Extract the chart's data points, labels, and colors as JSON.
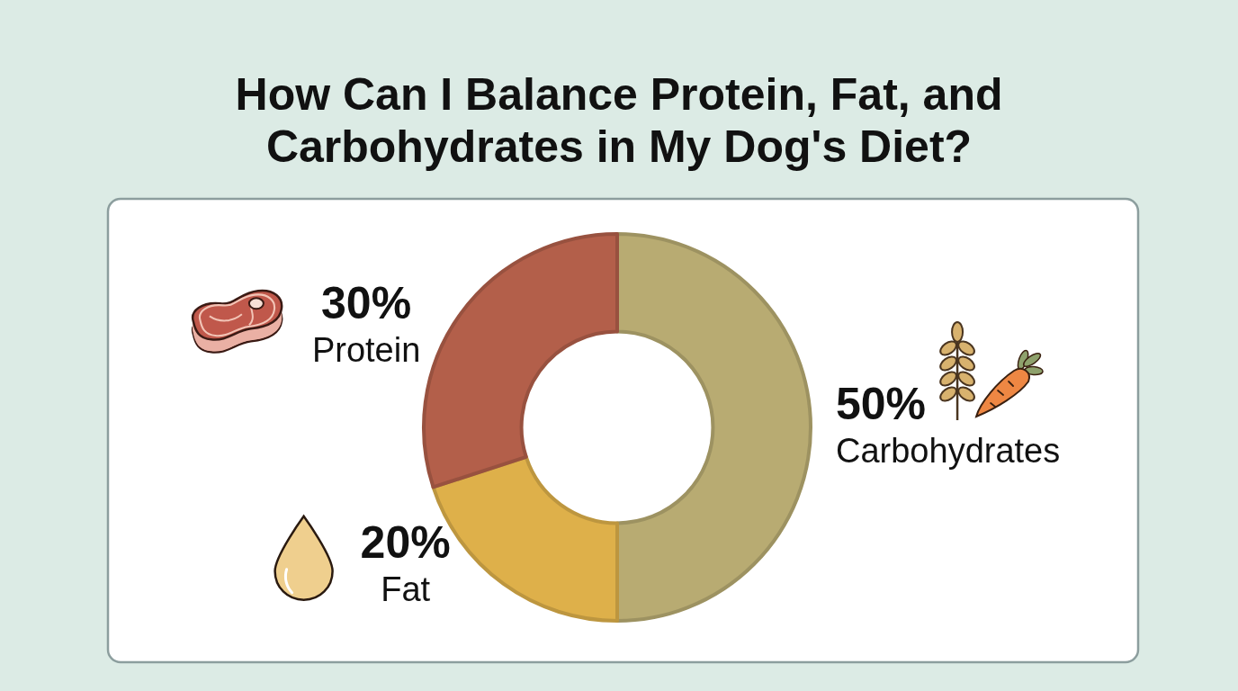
{
  "chart_data": {
    "type": "donut",
    "title": "How Can I Balance Protein, Fat, and Carbohydrates in My Dog's Diet?",
    "categories": [
      "Carbohydrates",
      "Fat",
      "Protein"
    ],
    "values": [
      50,
      20,
      30
    ],
    "colors": [
      "#b8ab72",
      "#deb04a",
      "#b35f4a"
    ],
    "value_labels": [
      "50%",
      "20%",
      "30%"
    ]
  }
}
